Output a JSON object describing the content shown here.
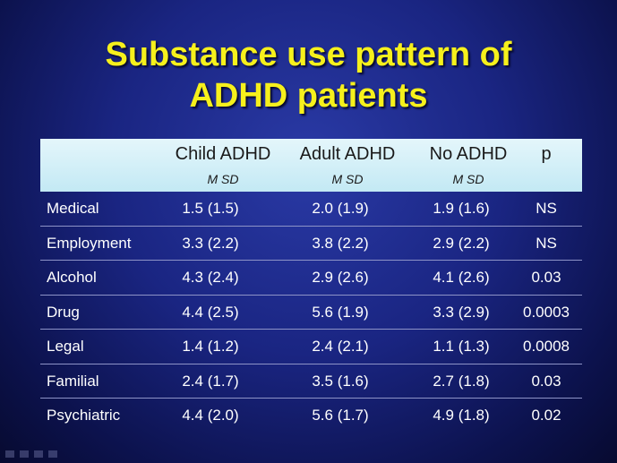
{
  "title": {
    "line1": "Substance use pattern of",
    "line2": "ADHD patients"
  },
  "table": {
    "columns": [
      {
        "label": "Child ADHD",
        "sub": "M  SD"
      },
      {
        "label": "Adult ADHD",
        "sub": "M  SD"
      },
      {
        "label": "No ADHD",
        "sub": "M  SD"
      },
      {
        "label": "p",
        "sub": ""
      }
    ],
    "rows": [
      {
        "label": "Medical",
        "child": "1.5 (1.5)",
        "adult": "2.0 (1.9)",
        "none": "1.9 (1.6)",
        "p": "NS"
      },
      {
        "label": "Employment",
        "child": "3.3 (2.2)",
        "adult": "3.8 (2.2)",
        "none": "2.9 (2.2)",
        "p": "NS"
      },
      {
        "label": "Alcohol",
        "child": "4.3 (2.4)",
        "adult": "2.9 (2.6)",
        "none": "4.1 (2.6)",
        "p": "0.03"
      },
      {
        "label": "Drug",
        "child": "4.4 (2.5)",
        "adult": "5.6 (1.9)",
        "none": "3.3 (2.9)",
        "p": "0.0003"
      },
      {
        "label": "Legal",
        "child": "1.4 (1.2)",
        "adult": "2.4 (2.1)",
        "none": "1.1 (1.3)",
        "p": "0.0008"
      },
      {
        "label": "Familial",
        "child": "2.4 (1.7)",
        "adult": "3.5 (1.6)",
        "none": "2.7 (1.8)",
        "p": "0.03"
      },
      {
        "label": "Psychiatric",
        "child": "4.4 (2.0)",
        "adult": "5.6 (1.7)",
        "none": "4.9 (1.8)",
        "p": "0.02"
      }
    ]
  },
  "colors": {
    "title": "#f6f01c",
    "header_bg": "#c3e9f4",
    "background": "#1a2582",
    "row_text": "#ffffff"
  }
}
